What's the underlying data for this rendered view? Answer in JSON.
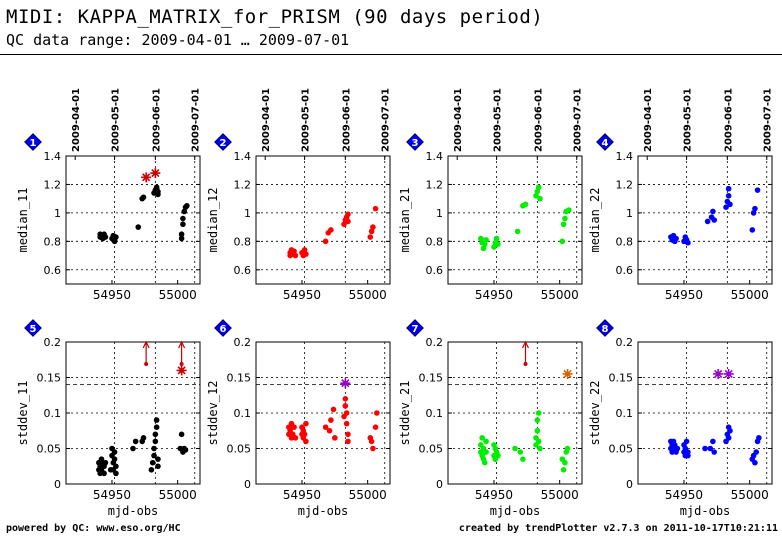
{
  "header": {
    "title": "MIDI: KAPPA_MATRIX_for_PRISM (90 days period)",
    "subtitle": "QC data range: 2009-04-01 … 2009-07-01"
  },
  "footer": {
    "left": "powered by QC: www.eso.org/HC",
    "right": "created by trendPlotter v2.7.3 on 2011-10-17T10:21:11"
  },
  "colors": {
    "c11": "#000000",
    "c12": "#ff0000",
    "c21": "#00ee00",
    "c22": "#0000ff",
    "badge": "#0000ee",
    "outlier_red": "#cc0000",
    "star_purple": "#9900cc",
    "star_orange": "#cc6600"
  },
  "chart_data": [
    {
      "type": "scatter",
      "panel": 1,
      "ylabel": "median_11",
      "ylim": [
        0.5,
        1.4
      ],
      "yticks": [
        "0.6",
        "0.8",
        "1",
        "1.2",
        "1.4"
      ],
      "refline": null,
      "color": "#000000",
      "points": [
        [
          54941,
          0.85
        ],
        [
          54941,
          0.83
        ],
        [
          54942,
          0.84
        ],
        [
          54943,
          0.82
        ],
        [
          54944,
          0.85
        ],
        [
          54945,
          0.83
        ],
        [
          54950,
          0.82
        ],
        [
          54951,
          0.84
        ],
        [
          54952,
          0.81
        ],
        [
          54952,
          0.8
        ],
        [
          54953,
          0.83
        ],
        [
          54970,
          0.9
        ],
        [
          54973,
          1.1
        ],
        [
          54974,
          1.11
        ],
        [
          54982,
          1.14
        ],
        [
          54983,
          1.16
        ],
        [
          54984,
          1.17
        ],
        [
          54984,
          1.18
        ],
        [
          54985,
          1.15
        ],
        [
          54985,
          1.13
        ],
        [
          55003,
          0.82
        ],
        [
          55003,
          0.85
        ],
        [
          55004,
          0.92
        ],
        [
          55004,
          0.96
        ],
        [
          55005,
          1.01
        ],
        [
          55006,
          1.04
        ],
        [
          55007,
          1.05
        ]
      ],
      "stars": [
        {
          "x": 54976,
          "y": 1.25,
          "color": "#cc0000"
        },
        {
          "x": 54983,
          "y": 1.28,
          "color": "#cc0000"
        }
      ]
    },
    {
      "type": "scatter",
      "panel": 2,
      "ylabel": "median_12",
      "ylim": [
        0.5,
        1.4
      ],
      "yticks": [
        "0.6",
        "0.8",
        "1",
        "1.2",
        "1.4"
      ],
      "refline": null,
      "color": "#ff0000",
      "points": [
        [
          54941,
          0.72
        ],
        [
          54941,
          0.7
        ],
        [
          54942,
          0.74
        ],
        [
          54943,
          0.71
        ],
        [
          54944,
          0.73
        ],
        [
          54945,
          0.7
        ],
        [
          54950,
          0.72
        ],
        [
          54951,
          0.7
        ],
        [
          54952,
          0.74
        ],
        [
          54953,
          0.71
        ],
        [
          54968,
          0.8
        ],
        [
          54970,
          0.86
        ],
        [
          54972,
          0.88
        ],
        [
          54982,
          0.92
        ],
        [
          54983,
          0.95
        ],
        [
          54984,
          0.97
        ],
        [
          54985,
          0.94
        ],
        [
          54985,
          0.99
        ],
        [
          55002,
          0.83
        ],
        [
          55003,
          0.87
        ],
        [
          55004,
          0.9
        ],
        [
          55006,
          1.03
        ]
      ],
      "stars": []
    },
    {
      "type": "scatter",
      "panel": 3,
      "ylabel": "median_21",
      "ylim": [
        0.5,
        1.4
      ],
      "yticks": [
        "0.6",
        "0.8",
        "1",
        "1.2",
        "1.4"
      ],
      "refline": null,
      "color": "#00ee00",
      "points": [
        [
          54940,
          0.82
        ],
        [
          54941,
          0.79
        ],
        [
          54942,
          0.75
        ],
        [
          54943,
          0.78
        ],
        [
          54944,
          0.81
        ],
        [
          54950,
          0.76
        ],
        [
          54951,
          0.79
        ],
        [
          54952,
          0.82
        ],
        [
          54953,
          0.78
        ],
        [
          54968,
          0.87
        ],
        [
          54972,
          1.05
        ],
        [
          54974,
          1.06
        ],
        [
          54982,
          1.12
        ],
        [
          54983,
          1.15
        ],
        [
          54984,
          1.18
        ],
        [
          54985,
          1.1
        ],
        [
          55002,
          0.8
        ],
        [
          55003,
          0.92
        ],
        [
          55004,
          0.96
        ],
        [
          55005,
          1.01
        ],
        [
          55007,
          1.02
        ]
      ],
      "stars": []
    },
    {
      "type": "scatter",
      "panel": 4,
      "ylabel": "median_22",
      "ylim": [
        0.5,
        1.4
      ],
      "yticks": [
        "0.6",
        "0.8",
        "1",
        "1.2",
        "1.4"
      ],
      "refline": null,
      "color": "#0000ff",
      "points": [
        [
          54940,
          0.83
        ],
        [
          54941,
          0.81
        ],
        [
          54942,
          0.84
        ],
        [
          54943,
          0.8
        ],
        [
          54944,
          0.82
        ],
        [
          54950,
          0.8
        ],
        [
          54951,
          0.83
        ],
        [
          54952,
          0.81
        ],
        [
          54953,
          0.79
        ],
        [
          54968,
          0.94
        ],
        [
          54971,
          0.97
        ],
        [
          54972,
          1.01
        ],
        [
          54973,
          0.95
        ],
        [
          54982,
          1.04
        ],
        [
          54983,
          1.08
        ],
        [
          54984,
          1.12
        ],
        [
          54984,
          1.17
        ],
        [
          54985,
          1.06
        ],
        [
          55002,
          0.88
        ],
        [
          55003,
          1.0
        ],
        [
          55004,
          1.03
        ],
        [
          55006,
          1.16
        ]
      ],
      "stars": []
    },
    {
      "type": "scatter",
      "panel": 5,
      "ylabel": "stddev_11",
      "ylim": [
        0,
        0.2
      ],
      "yticks": [
        "0",
        "0.05",
        "0.1",
        "0.15",
        "0.2"
      ],
      "refline": 0.14,
      "color": "#000000",
      "points": [
        [
          54940,
          0.02
        ],
        [
          54940,
          0.03
        ],
        [
          54941,
          0.015
        ],
        [
          54941,
          0.025
        ],
        [
          54942,
          0.035
        ],
        [
          54942,
          0.02
        ],
        [
          54943,
          0.03
        ],
        [
          54944,
          0.025
        ],
        [
          54944,
          0.015
        ],
        [
          54945,
          0.03
        ],
        [
          54949,
          0.02
        ],
        [
          54950,
          0.04
        ],
        [
          54950,
          0.05
        ],
        [
          54951,
          0.03
        ],
        [
          54951,
          0.02
        ],
        [
          54952,
          0.045
        ],
        [
          54952,
          0.035
        ],
        [
          54953,
          0.025
        ],
        [
          54953,
          0.015
        ],
        [
          54966,
          0.05
        ],
        [
          54968,
          0.06
        ],
        [
          54973,
          0.06
        ],
        [
          54974,
          0.065
        ],
        [
          54980,
          0.02
        ],
        [
          54981,
          0.03
        ],
        [
          54982,
          0.04
        ],
        [
          54982,
          0.05
        ],
        [
          54983,
          0.06
        ],
        [
          54983,
          0.07
        ],
        [
          54984,
          0.08
        ],
        [
          54984,
          0.09
        ],
        [
          54985,
          0.035
        ],
        [
          54985,
          0.025
        ],
        [
          55002,
          0.05
        ],
        [
          55003,
          0.07
        ],
        [
          55004,
          0.045
        ],
        [
          55005,
          0.05
        ],
        [
          55006,
          0.048
        ]
      ],
      "stars": [
        {
          "x": 55003,
          "y": 0.16,
          "color": "#cc0000"
        }
      ],
      "outliers": [
        {
          "x": 54976,
          "color": "#cc0000"
        },
        {
          "x": 55003,
          "color": "#cc0000"
        }
      ]
    },
    {
      "type": "scatter",
      "panel": 6,
      "ylabel": "stddev_12",
      "ylim": [
        0,
        0.2
      ],
      "yticks": [
        "0",
        "0.05",
        "0.1",
        "0.15",
        "0.2"
      ],
      "refline": 0.14,
      "color": "#ff0000",
      "points": [
        [
          54940,
          0.08
        ],
        [
          54940,
          0.07
        ],
        [
          54941,
          0.075
        ],
        [
          54942,
          0.065
        ],
        [
          54942,
          0.085
        ],
        [
          54943,
          0.07
        ],
        [
          54944,
          0.08
        ],
        [
          54945,
          0.065
        ],
        [
          54950,
          0.07
        ],
        [
          54950,
          0.08
        ],
        [
          54951,
          0.065
        ],
        [
          54951,
          0.075
        ],
        [
          54952,
          0.07
        ],
        [
          54953,
          0.085
        ],
        [
          54953,
          0.06
        ],
        [
          54968,
          0.08
        ],
        [
          54971,
          0.075
        ],
        [
          54972,
          0.09
        ],
        [
          54974,
          0.105
        ],
        [
          54975,
          0.065
        ],
        [
          54982,
          0.095
        ],
        [
          54983,
          0.11
        ],
        [
          54983,
          0.12
        ],
        [
          54984,
          0.085
        ],
        [
          54984,
          0.1
        ],
        [
          54985,
          0.07
        ],
        [
          54985,
          0.06
        ],
        [
          55002,
          0.065
        ],
        [
          55003,
          0.06
        ],
        [
          55004,
          0.05
        ],
        [
          55006,
          0.08
        ],
        [
          55007,
          0.1
        ]
      ],
      "stars": [
        {
          "x": 54983,
          "y": 0.142,
          "color": "#9900cc"
        }
      ]
    },
    {
      "type": "scatter",
      "panel": 7,
      "ylabel": "stddev_21",
      "ylim": [
        0,
        0.2
      ],
      "yticks": [
        "0",
        "0.05",
        "0.1",
        "0.15",
        "0.2"
      ],
      "refline": 0.14,
      "color": "#00ee00",
      "points": [
        [
          54940,
          0.045
        ],
        [
          54940,
          0.055
        ],
        [
          54941,
          0.04
        ],
        [
          54941,
          0.065
        ],
        [
          54942,
          0.035
        ],
        [
          54942,
          0.05
        ],
        [
          54943,
          0.03
        ],
        [
          54944,
          0.06
        ],
        [
          54944,
          0.045
        ],
        [
          54950,
          0.04
        ],
        [
          54950,
          0.055
        ],
        [
          54951,
          0.035
        ],
        [
          54951,
          0.05
        ],
        [
          54952,
          0.045
        ],
        [
          54953,
          0.04
        ],
        [
          54966,
          0.05
        ],
        [
          54970,
          0.045
        ],
        [
          54972,
          0.035
        ],
        [
          54982,
          0.055
        ],
        [
          54982,
          0.065
        ],
        [
          54983,
          0.075
        ],
        [
          54983,
          0.09
        ],
        [
          54984,
          0.1
        ],
        [
          54984,
          0.06
        ],
        [
          54985,
          0.05
        ],
        [
          55002,
          0.035
        ],
        [
          55003,
          0.02
        ],
        [
          55004,
          0.03
        ],
        [
          55005,
          0.045
        ],
        [
          55006,
          0.05
        ]
      ],
      "stars": [
        {
          "x": 55006,
          "y": 0.155,
          "color": "#cc6600"
        }
      ],
      "outliers": [
        {
          "x": 54974,
          "color": "#cc0000"
        }
      ]
    },
    {
      "type": "scatter",
      "panel": 8,
      "ylabel": "stddev_22",
      "ylim": [
        0,
        0.2
      ],
      "yticks": [
        "0",
        "0.05",
        "0.1",
        "0.15",
        "0.2"
      ],
      "refline": 0.14,
      "color": "#0000ff",
      "points": [
        [
          54940,
          0.06
        ],
        [
          54940,
          0.05
        ],
        [
          54941,
          0.055
        ],
        [
          54941,
          0.045
        ],
        [
          54942,
          0.06
        ],
        [
          54942,
          0.05
        ],
        [
          54943,
          0.055
        ],
        [
          54944,
          0.045
        ],
        [
          54945,
          0.05
        ],
        [
          54950,
          0.045
        ],
        [
          54950,
          0.055
        ],
        [
          54951,
          0.04
        ],
        [
          54951,
          0.05
        ],
        [
          54952,
          0.06
        ],
        [
          54953,
          0.045
        ],
        [
          54953,
          0.04
        ],
        [
          54966,
          0.05
        ],
        [
          54970,
          0.05
        ],
        [
          54972,
          0.06
        ],
        [
          54973,
          0.045
        ],
        [
          54982,
          0.06
        ],
        [
          54983,
          0.07
        ],
        [
          54984,
          0.08
        ],
        [
          54984,
          0.065
        ],
        [
          54985,
          0.075
        ],
        [
          55002,
          0.035
        ],
        [
          55003,
          0.04
        ],
        [
          55004,
          0.03
        ],
        [
          55005,
          0.045
        ],
        [
          55006,
          0.06
        ],
        [
          55007,
          0.065
        ]
      ],
      "stars": [
        {
          "x": 54976,
          "y": 0.155,
          "color": "#9900cc"
        },
        {
          "x": 54984,
          "y": 0.155,
          "color": "#9900cc"
        }
      ]
    }
  ],
  "axes": {
    "xlim": [
      54915,
      55017
    ],
    "xlabel": "mjd-obs",
    "xticks": [
      {
        "v": 54950,
        "label": "54950"
      },
      {
        "v": 55000,
        "label": "55000"
      }
    ],
    "top_dates": [
      {
        "v": 54922,
        "label": "2009-04-01"
      },
      {
        "v": 54952,
        "label": "2009-05-01"
      },
      {
        "v": 54983,
        "label": "2009-06-01"
      },
      {
        "v": 55013,
        "label": "2009-07-01"
      }
    ],
    "vgrid": [
      54952,
      54983,
      55013
    ]
  }
}
